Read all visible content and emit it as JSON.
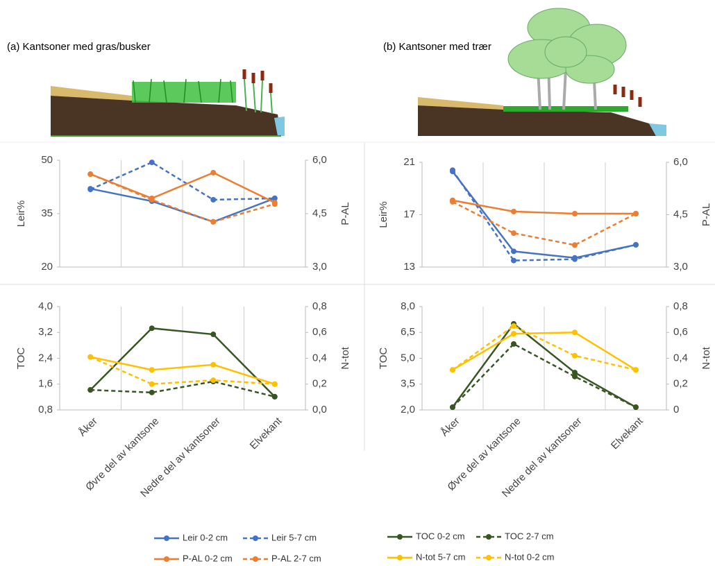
{
  "chart_data": [
    {
      "type": "line",
      "title": "(a)  Kantsoner med gras/busker",
      "ylabel": "Leir%",
      "y2label": "P-AL",
      "ylim": [
        20,
        50
      ],
      "yticks": [
        20,
        35,
        50
      ],
      "y2lim": [
        3.0,
        6.0
      ],
      "y2ticks": [
        {
          "value": 3.0,
          "label": "3,0"
        },
        {
          "value": 4.5,
          "label": "4,5"
        },
        {
          "value": 6.0,
          "label": "6,0"
        }
      ],
      "grid": false,
      "series": [
        {
          "name": "Leir 0-2 cm",
          "color": "#4472c4",
          "dashed": false,
          "values": [
            42.0,
            38.5,
            32.7,
            39.3
          ]
        },
        {
          "name": "Leir 5-7 cm",
          "color": "#4472c4",
          "dashed": true,
          "values": [
            41.8,
            49.4,
            38.9,
            39.3
          ]
        },
        {
          "name": "P-AL 0-2 cm",
          "color": "#ed7d31",
          "dashed": false,
          "axis": "y2",
          "values": [
            5.61,
            4.93,
            5.65,
            4.81
          ]
        },
        {
          "name": "P-AL 2-7 cm",
          "color": "#ed7d31",
          "dashed": true,
          "axis": "y2",
          "values": [
            5.61,
            4.89,
            4.27,
            4.77
          ]
        }
      ]
    },
    {
      "type": "line",
      "title": "(b) Kantsoner med trær",
      "ylabel": "Leir%",
      "y2label": "P-AL",
      "ylim": [
        13,
        21
      ],
      "yticks": [
        13,
        17,
        21
      ],
      "y2lim": [
        3.0,
        6.0
      ],
      "y2ticks": [
        {
          "value": 3.0,
          "label": "3,0"
        },
        {
          "value": 4.5,
          "label": "4,5"
        },
        {
          "value": 6.0,
          "label": "6,0"
        }
      ],
      "grid": false,
      "series": [
        {
          "color": "#4472c4",
          "dashed": false,
          "values": [
            20.3,
            14.2,
            13.7,
            14.7
          ]
        },
        {
          "color": "#4472c4",
          "dashed": true,
          "values": [
            20.4,
            13.5,
            13.6,
            14.7
          ]
        },
        {
          "color": "#ed7d31",
          "dashed": false,
          "axis": "y2",
          "values": [
            4.91,
            4.59,
            4.53,
            4.53
          ]
        },
        {
          "color": "#ed7d31",
          "dashed": true,
          "axis": "y2",
          "values": [
            4.87,
            3.97,
            3.63,
            4.53
          ]
        }
      ]
    },
    {
      "type": "line",
      "ylabel": "TOC",
      "y2label": "N-tot",
      "categories": [
        "Åker",
        "Øvre del av kantsone",
        "Nedre del av kantsoner",
        "Elvekant"
      ],
      "ylim": [
        0.8,
        4.0
      ],
      "yticks": [
        {
          "value": 0.8,
          "label": "0,8"
        },
        {
          "value": 1.6,
          "label": "1,6"
        },
        {
          "value": 2.4,
          "label": "2,4"
        },
        {
          "value": 3.2,
          "label": "3,2"
        },
        {
          "value": 4.0,
          "label": "4,0"
        }
      ],
      "y2lim": [
        0.0,
        0.8
      ],
      "y2ticks": [
        {
          "value": 0.0,
          "label": "0,0"
        },
        {
          "value": 0.2,
          "label": "0,2"
        },
        {
          "value": 0.4,
          "label": "0,4"
        },
        {
          "value": 0.6,
          "label": "0,6"
        },
        {
          "value": 0.8,
          "label": "0,8"
        }
      ],
      "grid": false,
      "series": [
        {
          "name": "TOC 0-2 cm",
          "color": "#375623",
          "dashed": false,
          "values": [
            1.42,
            3.33,
            3.14,
            1.21
          ]
        },
        {
          "name": "TOC 2-7 cm",
          "color": "#375623",
          "dashed": true,
          "values": [
            1.42,
            1.34,
            1.68,
            1.21
          ]
        },
        {
          "name": "N-tot 5-7 cm",
          "color": "#ffc000",
          "dashed": false,
          "axis": "y2",
          "values": [
            0.41,
            0.31,
            0.35,
            0.2
          ]
        },
        {
          "name": "N-tot 0-2 cm",
          "color": "#ffc000",
          "dashed": true,
          "axis": "y2",
          "values": [
            0.41,
            0.2,
            0.23,
            0.2
          ]
        }
      ]
    },
    {
      "type": "line",
      "ylabel": "TOC",
      "y2label": "N-tot",
      "categories": [
        "Åker",
        "Øvre del av kantsone",
        "Nedre del av kantsoner",
        "Elvekant"
      ],
      "ylim": [
        2.0,
        8.0
      ],
      "yticks": [
        {
          "value": 2.0,
          "label": "2,0"
        },
        {
          "value": 3.5,
          "label": "3,5"
        },
        {
          "value": 5.0,
          "label": "5,0"
        },
        {
          "value": 6.5,
          "label": "6,5"
        },
        {
          "value": 8.0,
          "label": "8,0"
        }
      ],
      "y2lim": [
        0,
        0.8
      ],
      "y2ticks": [
        0,
        {
          "value": 0.2,
          "label": "0,2"
        },
        {
          "value": 0.4,
          "label": "0,4"
        },
        {
          "value": 0.6,
          "label": "0,6"
        },
        {
          "value": 0.8,
          "label": "0,8"
        }
      ],
      "grid": false,
      "series": [
        {
          "color": "#375623",
          "dashed": false,
          "values": [
            2.16,
            7.0,
            4.17,
            2.16
          ]
        },
        {
          "color": "#375623",
          "dashed": true,
          "values": [
            2.16,
            5.83,
            3.94,
            2.16
          ]
        },
        {
          "color": "#ffc000",
          "dashed": false,
          "axis": "y2",
          "values": [
            0.31,
            0.59,
            0.6,
            0.31
          ]
        },
        {
          "color": "#ffc000",
          "dashed": true,
          "axis": "y2",
          "values": [
            0.31,
            0.65,
            0.42,
            0.31
          ]
        }
      ]
    }
  ]
}
